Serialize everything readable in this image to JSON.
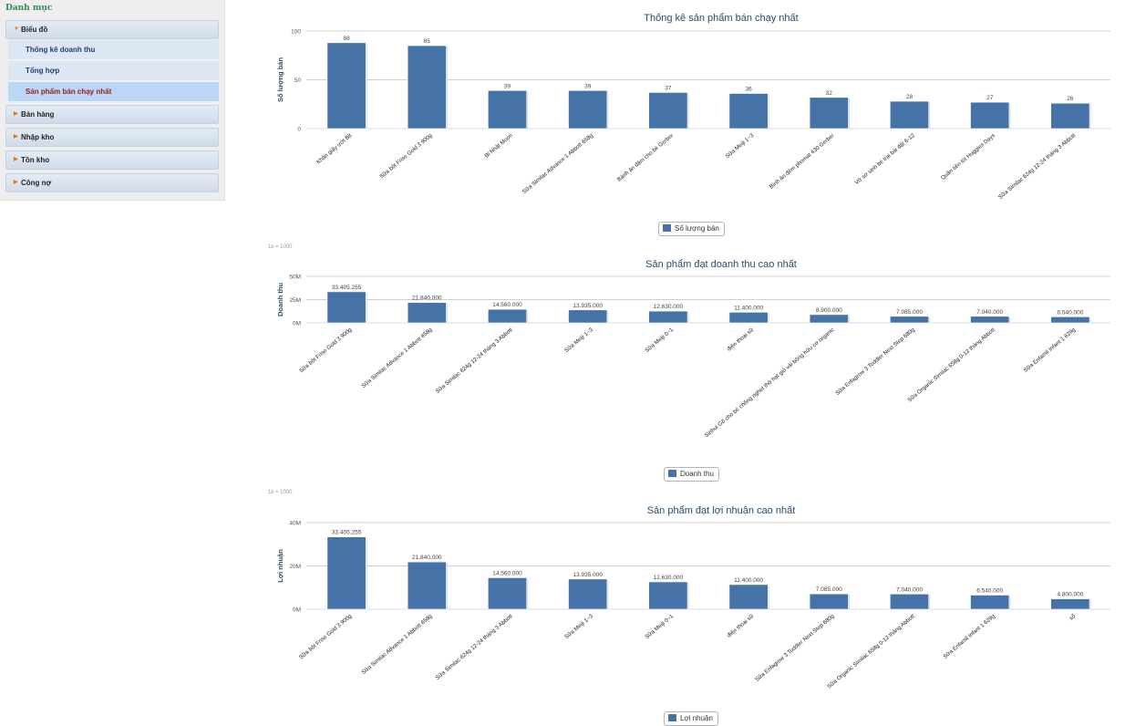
{
  "sidebar": {
    "title": "Danh mục",
    "groups": [
      {
        "label": "Biểu đồ",
        "expanded": true,
        "children": [
          {
            "label": "Thống kê doanh thu",
            "active": false
          },
          {
            "label": "Tổng hợp",
            "active": false
          },
          {
            "label": "Sản phẩm bán chạy nhất",
            "active": true
          }
        ]
      },
      {
        "label": "Bán hàng"
      },
      {
        "label": "Nhập kho"
      },
      {
        "label": "Tồn kho"
      },
      {
        "label": "Công nợ"
      }
    ]
  },
  "unit_note": "1k = 1000",
  "colors": {
    "bar": "#4572a7",
    "grid": "#c0c0c0",
    "title": "#274b6d"
  },
  "chart_data": [
    {
      "type": "bar",
      "title": "Thống kê sản phẩm bán chạy nhất",
      "ylabel": "Số lượng bán",
      "ylim": [
        0,
        100
      ],
      "yticks": [
        "0",
        "50",
        "100"
      ],
      "legend": "Số lượng bán",
      "categories": [
        "Khăn giấy ướt Bịt",
        "Sữa bột Friso Gold 3 900g",
        "Bỉ Nhật Moon",
        "Sữa Similac Advance 1 Abbott 658g",
        "Bánh ăn dặm cho bé Gerber",
        "Sữa Meiji 1~3",
        "Bình ăn đêm phomat 430 Gerber",
        "Vở sơ sinh bé trai bài đặt 6-12",
        "Quần tiện lót Huggies Days",
        "Sữa Similac 624g 12-24 tháng 3 Abbott"
      ],
      "values": [
        88,
        85,
        39,
        39,
        37,
        36,
        32,
        28,
        27,
        26
      ],
      "value_labels": [
        "88",
        "85",
        "39",
        "39",
        "37",
        "36",
        "32",
        "28",
        "27",
        "26"
      ]
    },
    {
      "type": "bar",
      "title": "Sản phẩm đạt doanh thu cao nhất",
      "ylabel": "Doanh thu",
      "ylim": [
        0,
        50000000
      ],
      "yticks": [
        "0M",
        "25M",
        "50M"
      ],
      "legend": "Doanh thu",
      "categories": [
        "Sữa bột Friso Gold 3 900g",
        "Sữa Similac Advance 1 Abbott 658g",
        "Sữa Similac 624g 12-24 tháng 3 Abbott",
        "Sữa Meiji 1~3",
        "Sữa Meiji 0~1",
        "điện thoại sữ",
        "Sinhui Gõ cho bé chống nghẹt thở hạt giỏ vải bông hữu cơ organic",
        "Sữa Enfagrow 3 Toddler Next Step 680g",
        "Sữa Organic Similac 658g 0-12 tháng Abbott",
        "Sữa Enfamil Infant 1 629g"
      ],
      "values": [
        33405255,
        21840000,
        14560000,
        13935000,
        12630000,
        11400000,
        8900000,
        7085000,
        7040000,
        6540000
      ],
      "value_labels": [
        "33.405.255",
        "21.840.000",
        "14.560.000",
        "13.935.000",
        "12.630.000",
        "11.400.000",
        "8.900.000",
        "7.085.000",
        "7.040.000",
        "6.540.000"
      ]
    },
    {
      "type": "bar",
      "title": "Sản phẩm đạt lợi nhuận cao nhất",
      "ylabel": "Lợi nhuận",
      "ylim": [
        0,
        40000000
      ],
      "yticks": [
        "0M",
        "20M",
        "40M"
      ],
      "legend": "Lợi nhuận",
      "categories": [
        "Sữa bột Friso Gold 3 900g",
        "Sữa Similac Advance 1 Abbott 658g",
        "Sữa Similac 624g 12-24 tháng 3 Abbott",
        "Sữa Meiji 1~3",
        "Sữa Meiji 0~1",
        "điện thoại sữ",
        "Sữa Enfagrow 3 Toddler Next Step 680g",
        "Sữa Organic Similac 658g 0-12 tháng Abbott",
        "Sữa Enfamil Infant 1 629g",
        "xổ"
      ],
      "values": [
        33405255,
        21840000,
        14560000,
        13935000,
        12630000,
        11400000,
        7085000,
        7040000,
        6540000,
        4800000
      ],
      "value_labels": [
        "33.405.255",
        "21.840.000",
        "14.560.000",
        "13.935.000",
        "12.630.000",
        "11.400.000",
        "7.085.000",
        "7.040.000",
        "6.540.000",
        "4.800.000"
      ]
    }
  ]
}
